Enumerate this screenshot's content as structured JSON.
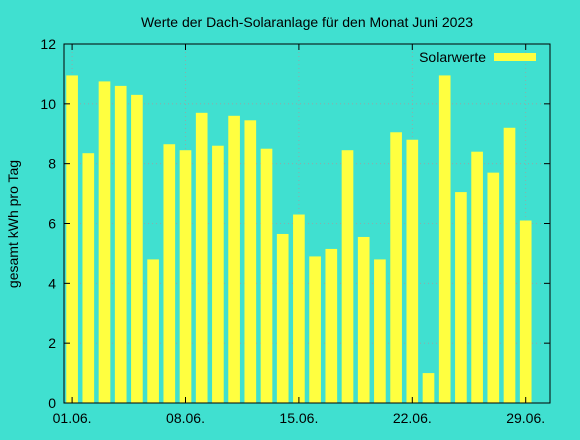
{
  "chart_data": {
    "type": "bar",
    "title": "Werte der Dach-Solaranlage für den Monat Juni 2023",
    "xlabel": "",
    "ylabel": "gesamt kWh pro Tag",
    "ylim": [
      0,
      12
    ],
    "yticks": [
      "0",
      "2",
      "4",
      "6",
      "8",
      "10",
      "12"
    ],
    "x_range": [
      1,
      30
    ],
    "xticks": [
      {
        "x": 1,
        "label": "01.06."
      },
      {
        "x": 8,
        "label": "08.06."
      },
      {
        "x": 15,
        "label": "15.06."
      },
      {
        "x": 22,
        "label": "22.06."
      },
      {
        "x": 29,
        "label": "29.06."
      }
    ],
    "grid": true,
    "legend_position": "top-right",
    "bar_color": "#ffff40",
    "background_color": "#40e0d0",
    "series": [
      {
        "name": "Solarwerte",
        "x": [
          1,
          2,
          3,
          4,
          5,
          6,
          7,
          8,
          9,
          10,
          11,
          12,
          13,
          14,
          15,
          16,
          17,
          18,
          19,
          20,
          21,
          22,
          23,
          24,
          25,
          26,
          27,
          28,
          29,
          30
        ],
        "values": [
          10.95,
          8.35,
          10.75,
          10.6,
          10.3,
          4.8,
          8.65,
          8.45,
          9.7,
          8.6,
          9.6,
          9.45,
          8.5,
          5.65,
          6.3,
          4.9,
          5.15,
          8.45,
          5.55,
          4.8,
          9.05,
          8.8,
          1.0,
          10.95,
          7.05,
          8.4,
          7.7,
          9.2,
          6.1,
          0
        ]
      }
    ]
  }
}
